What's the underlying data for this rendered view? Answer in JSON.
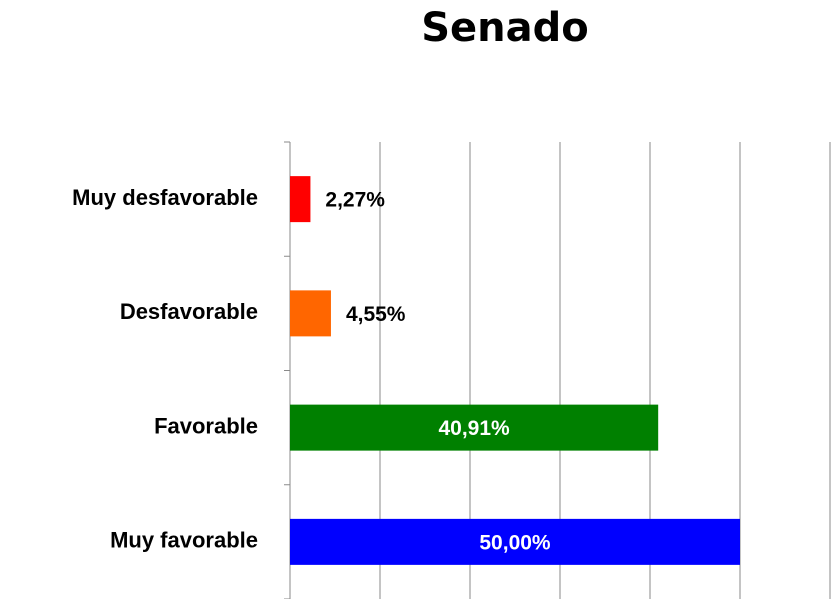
{
  "chart_data": {
    "type": "hbar",
    "title": "Senado",
    "categories": [
      "Muy desfavorable",
      "Desfavorable",
      "Favorable",
      "Muy favorable"
    ],
    "values": [
      2.27,
      4.55,
      40.91,
      50
    ],
    "value_labels": [
      "2,27%",
      "4,55%",
      "40,91%",
      "50,00%"
    ],
    "colors": [
      "#ff0000",
      "#ff6600",
      "#008000",
      "#0000ff"
    ],
    "xlim": [
      0,
      60
    ],
    "xticks": [
      0,
      10,
      20,
      30,
      40,
      50,
      60
    ],
    "grid": true
  }
}
